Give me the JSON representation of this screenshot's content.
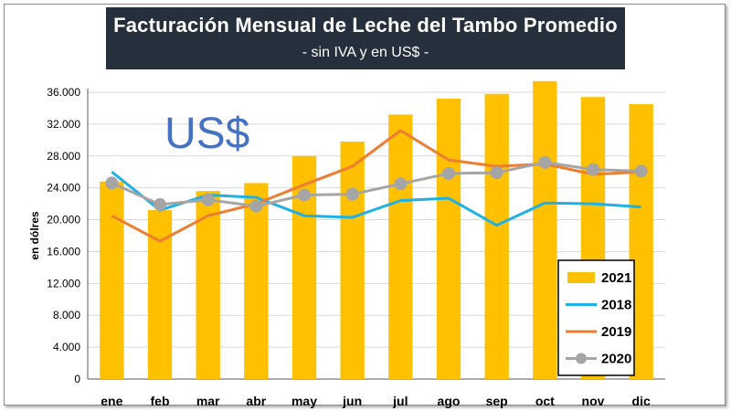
{
  "chart_data": {
    "type": "bar",
    "title": "Facturación Mensual de Leche del Tambo Promedio",
    "subtitle": "- sin IVA y en US$ -",
    "annotation": "US$",
    "ylabel": "en dólres",
    "xlabel": "",
    "ylim": [
      0,
      36000
    ],
    "yticks": [
      0,
      4000,
      8000,
      12000,
      16000,
      20000,
      24000,
      28000,
      32000,
      36000
    ],
    "ytick_labels": [
      "0",
      "4.000",
      "8.000",
      "12.000",
      "16.000",
      "20.000",
      "24.000",
      "28.000",
      "32.000",
      "36.000"
    ],
    "categories": [
      "ene",
      "feb",
      "mar",
      "abr",
      "may",
      "jun",
      "jul",
      "ago",
      "sep",
      "oct",
      "nov",
      "dic"
    ],
    "grid": true,
    "legend_position": "bottom-right",
    "series": [
      {
        "name": "2021",
        "type": "bar",
        "color": "#ffc000",
        "values": [
          24800,
          21200,
          23600,
          24600,
          28000,
          29800,
          33200,
          35200,
          35800,
          37400,
          35400,
          34500
        ]
      },
      {
        "name": "2018",
        "type": "line",
        "color": "#1fb1e6",
        "values": [
          26000,
          21200,
          23100,
          22800,
          20500,
          20300,
          22400,
          22700,
          19300,
          22100,
          22000,
          21600
        ]
      },
      {
        "name": "2019",
        "type": "line",
        "color": "#ed7d31",
        "values": [
          20500,
          17300,
          20500,
          22000,
          24400,
          26700,
          31200,
          27500,
          26700,
          27000,
          25700,
          26000
        ]
      },
      {
        "name": "2020",
        "type": "line",
        "color": "#a5a5a5",
        "marker": "circle",
        "values": [
          24600,
          21900,
          22500,
          21700,
          23100,
          23200,
          24500,
          25800,
          25900,
          27200,
          26300,
          26100
        ]
      }
    ]
  }
}
